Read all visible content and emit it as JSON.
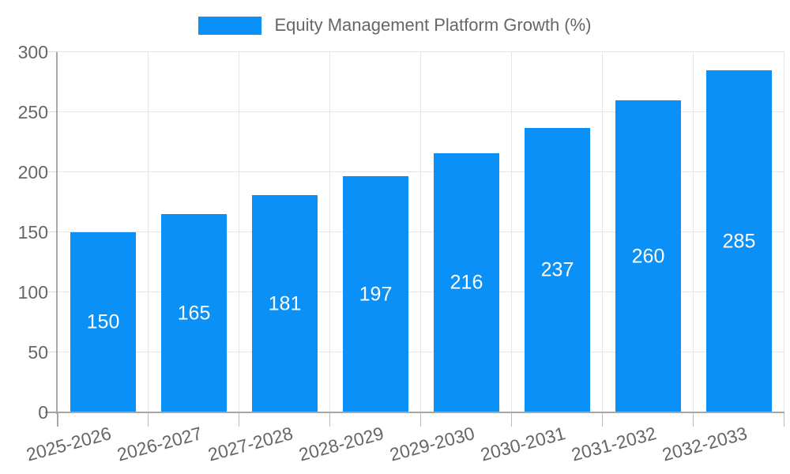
{
  "chart_data": {
    "type": "bar",
    "title": "Equity Management Platform Growth (%)",
    "legend_position": "top",
    "categories": [
      "2025-2026",
      "2026-2027",
      "2027-2028",
      "2028-2029",
      "2029-2030",
      "2030-2031",
      "2031-2032",
      "2032-2033"
    ],
    "values": [
      150,
      165,
      181,
      197,
      216,
      237,
      260,
      285
    ],
    "xlabel": "",
    "ylabel": "",
    "ylim": [
      0,
      300
    ],
    "yticks": [
      0,
      50,
      100,
      150,
      200,
      250,
      300
    ],
    "grid": true,
    "x_label_rotation_deg": -15,
    "bar_color": "#0a90f6",
    "value_label_color": "#ffffff",
    "text_color": "#666666",
    "grid_color": "#e6e6e6",
    "axis_color": "#a6a6a6",
    "tick_color": "#bdbdbd"
  }
}
